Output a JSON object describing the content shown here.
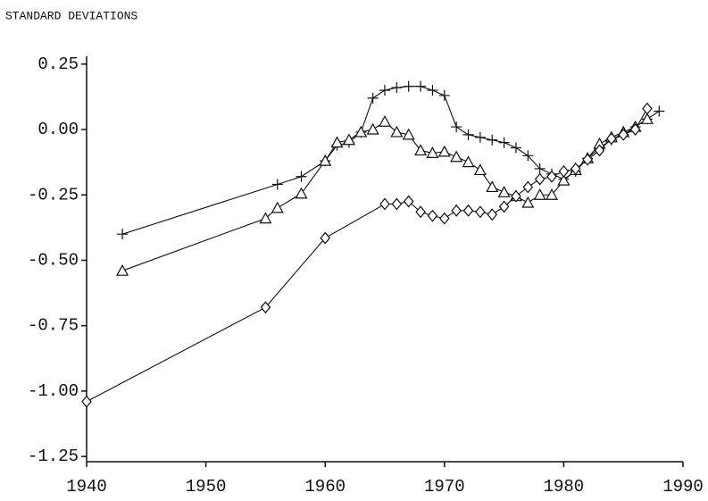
{
  "chart_data": {
    "type": "line",
    "title": "STANDARD DEVIATIONS",
    "xlim": [
      1940,
      1990
    ],
    "xticks": [
      1940,
      1950,
      1960,
      1970,
      1980,
      1990
    ],
    "ylim": [
      -1.27,
      0.28
    ],
    "yticks": [
      {
        "value": 0.25,
        "label": "0.25"
      },
      {
        "value": 0,
        "label": "0.00"
      },
      {
        "value": -0.25,
        "label": "-0.25"
      },
      {
        "value": -0.5,
        "label": "-0.50"
      },
      {
        "value": -0.75,
        "label": "-0.75"
      },
      {
        "value": -1,
        "label": "-1.00"
      },
      {
        "value": -1.25,
        "label": "-1.25"
      }
    ],
    "grid": false,
    "series": [
      {
        "color": "#111111",
        "marker": "plus",
        "x": [
          1943,
          1956,
          1958,
          1960,
          1961,
          1962,
          1963,
          1964,
          1965,
          1966,
          1967,
          1968,
          1969,
          1970,
          1971,
          1972,
          1973,
          1974,
          1975,
          1976,
          1977,
          1978,
          1979,
          1980,
          1981,
          1982,
          1983,
          1984,
          1985,
          1986,
          1987,
          1988
        ],
        "values": [
          -0.4,
          -0.21,
          -0.18,
          -0.12,
          -0.06,
          -0.05,
          -0.01,
          0.12,
          0.15,
          0.16,
          0.165,
          0.165,
          0.15,
          0.13,
          0.01,
          -0.02,
          -0.03,
          -0.04,
          -0.05,
          -0.07,
          -0.1,
          -0.15,
          -0.17,
          -0.19,
          -0.16,
          -0.11,
          -0.07,
          -0.04,
          -0.02,
          0.01,
          0.04,
          0.07
        ]
      },
      {
        "color": "#111111",
        "marker": "triangle",
        "x": [
          1943,
          1955,
          1956,
          1958,
          1960,
          1961,
          1962,
          1963,
          1964,
          1965,
          1966,
          1967,
          1968,
          1969,
          1970,
          1971,
          1972,
          1973,
          1974,
          1975,
          1976,
          1977,
          1978,
          1979,
          1980,
          1981,
          1982,
          1983,
          1984,
          1985,
          1986,
          1987
        ],
        "values": [
          -0.54,
          -0.34,
          -0.3,
          -0.245,
          -0.12,
          -0.05,
          -0.04,
          -0.01,
          0,
          0.03,
          -0.01,
          -0.02,
          -0.08,
          -0.09,
          -0.085,
          -0.105,
          -0.125,
          -0.155,
          -0.22,
          -0.24,
          -0.255,
          -0.28,
          -0.25,
          -0.25,
          -0.195,
          -0.155,
          -0.11,
          -0.055,
          -0.03,
          -0.01,
          0.01,
          0.04
        ]
      },
      {
        "color": "#111111",
        "marker": "diamond",
        "x": [
          1940,
          1955,
          1960,
          1965,
          1966,
          1967,
          1968,
          1969,
          1970,
          1971,
          1972,
          1973,
          1974,
          1975,
          1976,
          1977,
          1978,
          1979,
          1980,
          1981,
          1982,
          1983,
          1984,
          1985,
          1986,
          1987
        ],
        "values": [
          -1.04,
          -0.68,
          -0.415,
          -0.285,
          -0.285,
          -0.275,
          -0.315,
          -0.33,
          -0.34,
          -0.31,
          -0.31,
          -0.315,
          -0.325,
          -0.295,
          -0.255,
          -0.22,
          -0.19,
          -0.18,
          -0.16,
          -0.15,
          -0.115,
          -0.08,
          -0.035,
          -0.02,
          0,
          0.08
        ]
      }
    ]
  }
}
